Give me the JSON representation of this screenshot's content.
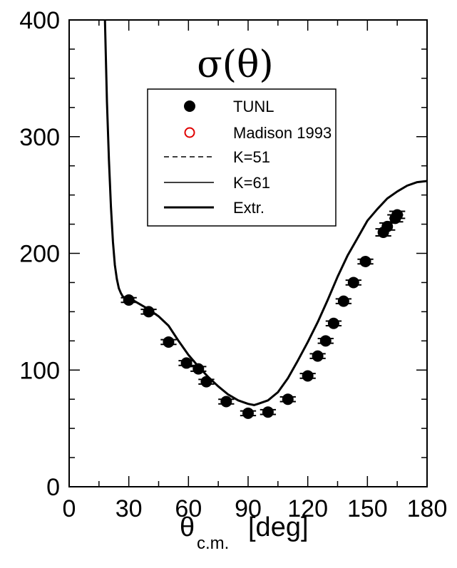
{
  "chart_data": {
    "type": "scatter",
    "title": "σ(θ)",
    "xlabel_main": "θ",
    "xlabel_sub": "c.m.",
    "xlabel_unit": "[deg]",
    "xlim": [
      0,
      180
    ],
    "ylim": [
      0,
      400
    ],
    "x_ticks": [
      "0",
      "30",
      "60",
      "90",
      "120",
      "150",
      "180"
    ],
    "x_tick_values": [
      0,
      30,
      60,
      90,
      120,
      150,
      180
    ],
    "y_ticks": [
      "0",
      "100",
      "200",
      "300",
      "400"
    ],
    "y_tick_values": [
      0,
      100,
      200,
      300,
      400
    ],
    "grid": false,
    "legend_position": "top-center",
    "legend": [
      {
        "label": "TUNL",
        "marker": "filled-circle",
        "color": "#000000"
      },
      {
        "label": "Madison 1993",
        "marker": "open-circle",
        "color": "#e00000"
      },
      {
        "label": "K=51",
        "line": "dashed",
        "color": "#000000"
      },
      {
        "label": "K=61",
        "line": "thin-solid",
        "color": "#000000"
      },
      {
        "label": "Extr.",
        "line": "thick-solid",
        "color": "#000000"
      }
    ],
    "series": [
      {
        "name": "TUNL",
        "x": [
          30,
          40,
          50,
          59,
          65,
          69,
          79,
          90,
          100,
          110,
          120,
          125,
          129,
          133,
          138,
          143,
          149,
          158,
          160,
          164,
          165
        ],
        "y": [
          160,
          150,
          124,
          106,
          101,
          90,
          73,
          63,
          64,
          75,
          95,
          112,
          125,
          140,
          159,
          175,
          193,
          218,
          223,
          230,
          233
        ],
        "xerr": [
          4,
          4,
          4,
          4,
          4,
          4,
          4,
          4,
          4,
          4,
          4,
          4,
          4,
          4,
          4,
          4,
          4,
          4,
          4,
          4,
          4
        ],
        "yerr": [
          2,
          2,
          2,
          2,
          2,
          2,
          2,
          2,
          2,
          2,
          2,
          2,
          2,
          2,
          2,
          2,
          2,
          3,
          3,
          3,
          3
        ]
      },
      {
        "name": "Extr.",
        "x": [
          18,
          19,
          20,
          21,
          22,
          23,
          24,
          25,
          26,
          27,
          28,
          30,
          32,
          35,
          40,
          45,
          50,
          55,
          60,
          65,
          70,
          75,
          80,
          85,
          90,
          93,
          95,
          100,
          105,
          110,
          115,
          120,
          125,
          130,
          135,
          140,
          145,
          150,
          155,
          160,
          165,
          170,
          175,
          180
        ],
        "y": [
          400,
          330,
          280,
          240,
          210,
          190,
          178,
          170,
          166,
          163,
          162,
          161,
          160,
          157,
          152,
          146,
          138,
          125,
          113,
          103,
          94,
          86,
          79,
          74,
          71,
          70,
          71,
          74,
          81,
          93,
          108,
          124,
          141,
          160,
          180,
          198,
          213,
          228,
          238,
          247,
          253,
          258,
          261,
          262
        ]
      }
    ]
  }
}
